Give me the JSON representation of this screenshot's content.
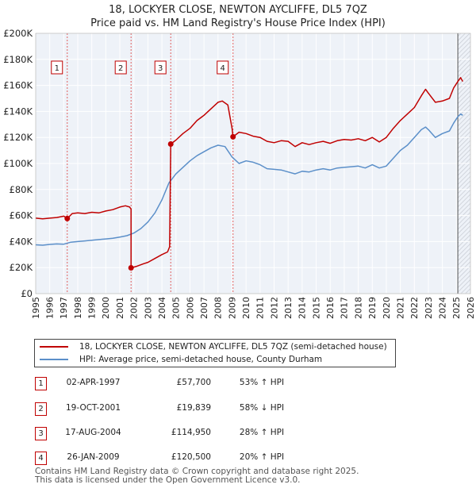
{
  "title_line1": "18, LOCKYER CLOSE, NEWTON AYCLIFFE, DL5 7QZ",
  "title_line2": "Price paid vs. HM Land Registry's House Price Index (HPI)",
  "chart_data": {
    "type": "line",
    "xlim": [
      1995,
      2026
    ],
    "ylim": [
      0,
      200000
    ],
    "y_ticks": [
      0,
      20000,
      40000,
      60000,
      80000,
      100000,
      120000,
      140000,
      160000,
      180000,
      200000
    ],
    "y_tick_labels": [
      "£0",
      "£20K",
      "£40K",
      "£60K",
      "£80K",
      "£100K",
      "£120K",
      "£140K",
      "£160K",
      "£180K",
      "£200K"
    ],
    "x_ticks": [
      1995,
      1996,
      1997,
      1998,
      1999,
      2000,
      2001,
      2002,
      2003,
      2004,
      2005,
      2006,
      2007,
      2008,
      2009,
      2010,
      2011,
      2012,
      2013,
      2014,
      2015,
      2016,
      2017,
      2018,
      2019,
      2020,
      2021,
      2022,
      2023,
      2024,
      2025,
      2026
    ],
    "x_tick_labels": [
      "1995",
      "1996",
      "1997",
      "1998",
      "1999",
      "2000",
      "2001",
      "2002",
      "2003",
      "2004",
      "2005",
      "2006",
      "2007",
      "2008",
      "2009",
      "2010",
      "2011",
      "2012",
      "2013",
      "2014",
      "2015",
      "2016",
      "2017",
      "2018",
      "2019",
      "2020",
      "2021",
      "2022",
      "2023",
      "2024",
      "2025",
      "2026"
    ],
    "grid": true,
    "forecast_start": 2025.1,
    "series": [
      {
        "name": "18, LOCKYER CLOSE, NEWTON AYCLIFFE, DL5 7QZ (semi-detached house)",
        "color": "#c00000",
        "points": [
          [
            1995.0,
            58000
          ],
          [
            1995.5,
            57500
          ],
          [
            1996.0,
            58000
          ],
          [
            1996.5,
            58500
          ],
          [
            1997.0,
            59500
          ],
          [
            1997.25,
            57700
          ],
          [
            1997.6,
            61500
          ],
          [
            1998.0,
            62000
          ],
          [
            1998.5,
            61500
          ],
          [
            1999.0,
            62500
          ],
          [
            1999.5,
            62000
          ],
          [
            2000.0,
            63500
          ],
          [
            2000.5,
            64500
          ],
          [
            2001.0,
            66500
          ],
          [
            2001.4,
            67500
          ],
          [
            2001.7,
            66500
          ],
          [
            2001.8,
            65000
          ],
          [
            2001.8,
            19839
          ],
          [
            2002.2,
            21000
          ],
          [
            2002.7,
            23000
          ],
          [
            2003.0,
            24000
          ],
          [
            2003.5,
            27000
          ],
          [
            2004.0,
            30000
          ],
          [
            2004.4,
            32000
          ],
          [
            2004.55,
            36000
          ],
          [
            2004.63,
            114950
          ],
          [
            2005.0,
            118000
          ],
          [
            2005.5,
            123000
          ],
          [
            2006.0,
            127000
          ],
          [
            2006.5,
            133000
          ],
          [
            2007.0,
            137000
          ],
          [
            2007.5,
            142000
          ],
          [
            2008.0,
            147000
          ],
          [
            2008.3,
            148000
          ],
          [
            2008.7,
            145000
          ],
          [
            2009.0,
            127000
          ],
          [
            2009.07,
            120500
          ],
          [
            2009.5,
            124000
          ],
          [
            2010.0,
            123000
          ],
          [
            2010.5,
            121000
          ],
          [
            2011.0,
            120000
          ],
          [
            2011.5,
            117000
          ],
          [
            2012.0,
            116000
          ],
          [
            2012.5,
            117500
          ],
          [
            2013.0,
            117000
          ],
          [
            2013.5,
            113000
          ],
          [
            2014.0,
            116000
          ],
          [
            2014.5,
            114500
          ],
          [
            2015.0,
            116000
          ],
          [
            2015.5,
            117000
          ],
          [
            2016.0,
            115500
          ],
          [
            2016.5,
            117500
          ],
          [
            2017.0,
            118500
          ],
          [
            2017.5,
            118000
          ],
          [
            2018.0,
            119000
          ],
          [
            2018.5,
            117500
          ],
          [
            2019.0,
            120000
          ],
          [
            2019.5,
            116500
          ],
          [
            2020.0,
            120000
          ],
          [
            2020.5,
            127000
          ],
          [
            2021.0,
            133000
          ],
          [
            2021.5,
            138000
          ],
          [
            2022.0,
            143000
          ],
          [
            2022.5,
            152000
          ],
          [
            2022.8,
            157000
          ],
          [
            2023.0,
            154000
          ],
          [
            2023.5,
            147000
          ],
          [
            2024.0,
            148000
          ],
          [
            2024.5,
            150000
          ],
          [
            2024.8,
            158000
          ],
          [
            2025.1,
            163000
          ],
          [
            2025.3,
            166000
          ],
          [
            2025.45,
            163000
          ]
        ]
      },
      {
        "name": "HPI: Average price, semi-detached house, County Durham",
        "color": "#5b8fc9",
        "points": [
          [
            1995.0,
            37500
          ],
          [
            1995.5,
            37200
          ],
          [
            1996.0,
            37800
          ],
          [
            1996.5,
            38200
          ],
          [
            1997.0,
            38000
          ],
          [
            1997.5,
            39500
          ],
          [
            1998.0,
            40000
          ],
          [
            1998.5,
            40500
          ],
          [
            1999.0,
            41000
          ],
          [
            1999.5,
            41500
          ],
          [
            2000.0,
            42000
          ],
          [
            2000.5,
            42500
          ],
          [
            2001.0,
            43500
          ],
          [
            2001.5,
            44500
          ],
          [
            2002.0,
            46500
          ],
          [
            2002.5,
            50000
          ],
          [
            2003.0,
            55000
          ],
          [
            2003.5,
            62000
          ],
          [
            2004.0,
            72000
          ],
          [
            2004.5,
            85000
          ],
          [
            2005.0,
            92000
          ],
          [
            2005.5,
            97000
          ],
          [
            2006.0,
            102000
          ],
          [
            2006.5,
            106000
          ],
          [
            2007.0,
            109000
          ],
          [
            2007.5,
            112000
          ],
          [
            2008.0,
            114000
          ],
          [
            2008.5,
            113000
          ],
          [
            2009.0,
            105000
          ],
          [
            2009.5,
            100000
          ],
          [
            2010.0,
            102000
          ],
          [
            2010.5,
            101000
          ],
          [
            2011.0,
            99000
          ],
          [
            2011.5,
            96000
          ],
          [
            2012.0,
            95500
          ],
          [
            2012.5,
            95000
          ],
          [
            2013.0,
            93500
          ],
          [
            2013.5,
            92000
          ],
          [
            2014.0,
            94000
          ],
          [
            2014.5,
            93500
          ],
          [
            2015.0,
            95000
          ],
          [
            2015.5,
            96000
          ],
          [
            2016.0,
            95000
          ],
          [
            2016.5,
            96500
          ],
          [
            2017.0,
            97000
          ],
          [
            2017.5,
            97500
          ],
          [
            2018.0,
            98000
          ],
          [
            2018.5,
            96500
          ],
          [
            2019.0,
            99000
          ],
          [
            2019.5,
            96500
          ],
          [
            2020.0,
            98000
          ],
          [
            2020.5,
            104000
          ],
          [
            2021.0,
            110000
          ],
          [
            2021.5,
            114000
          ],
          [
            2022.0,
            120000
          ],
          [
            2022.5,
            126000
          ],
          [
            2022.8,
            128000
          ],
          [
            2023.0,
            126000
          ],
          [
            2023.5,
            120000
          ],
          [
            2024.0,
            123000
          ],
          [
            2024.5,
            125000
          ],
          [
            2024.8,
            131000
          ],
          [
            2025.1,
            136000
          ],
          [
            2025.3,
            138000
          ],
          [
            2025.45,
            137000
          ]
        ]
      }
    ],
    "sales": [
      {
        "label": "1",
        "x": 1997.25,
        "y": 57700
      },
      {
        "label": "2",
        "x": 2001.8,
        "y": 19839
      },
      {
        "label": "3",
        "x": 2004.63,
        "y": 114950
      },
      {
        "label": "4",
        "x": 2009.07,
        "y": 120500
      }
    ]
  },
  "legend": {
    "series1_label": "18, LOCKYER CLOSE, NEWTON AYCLIFFE, DL5 7QZ (semi-detached house)",
    "series2_label": "HPI: Average price, semi-detached house, County Durham",
    "series1_color": "#c00000",
    "series2_color": "#5b8fc9"
  },
  "transactions": [
    {
      "num": "1",
      "date": "02-APR-1997",
      "price": "£57,700",
      "hpi": "53% ↑ HPI"
    },
    {
      "num": "2",
      "date": "19-OCT-2001",
      "price": "£19,839",
      "hpi": "58% ↓ HPI"
    },
    {
      "num": "3",
      "date": "17-AUG-2004",
      "price": "£114,950",
      "hpi": "28% ↑ HPI"
    },
    {
      "num": "4",
      "date": "26-JAN-2009",
      "price": "£120,500",
      "hpi": "20% ↑ HPI"
    }
  ],
  "footer_line1": "Contains HM Land Registry data © Crown copyright and database right 2025.",
  "footer_line2": "This data is licensed under the Open Government Licence v3.0."
}
